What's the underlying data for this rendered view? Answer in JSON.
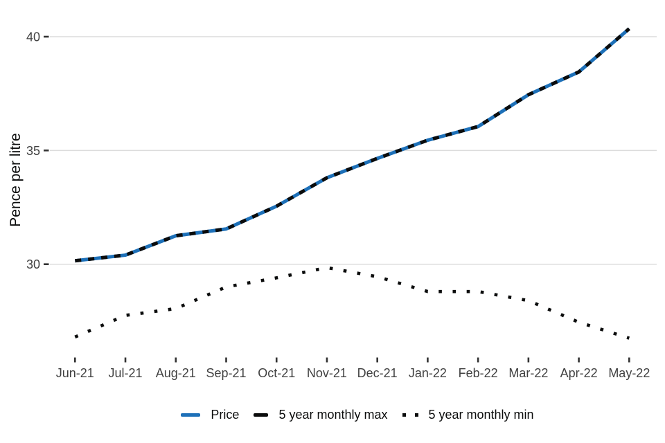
{
  "chart_data": {
    "type": "line",
    "title": "",
    "xlabel": "",
    "ylabel": "Pence per litre",
    "categories": [
      "Jun-21",
      "Jul-21",
      "Aug-21",
      "Sep-21",
      "Oct-21",
      "Nov-21",
      "Dec-21",
      "Jan-22",
      "Feb-22",
      "Mar-22",
      "Apr-22",
      "May-22"
    ],
    "yticks": [
      30,
      35,
      40
    ],
    "ylim": [
      25.9,
      41.2
    ],
    "grid": "horizontal-only",
    "legend_position": "bottom-center",
    "series": [
      {
        "name": "Price",
        "style": "solid",
        "color": "#1d70b8",
        "values": [
          30.15,
          30.4,
          31.25,
          31.55,
          32.55,
          33.8,
          34.65,
          35.45,
          36.05,
          37.45,
          38.45,
          40.35
        ]
      },
      {
        "name": "5 year monthly max",
        "style": "dashed",
        "color": "#0b0c0c",
        "values": [
          30.15,
          30.4,
          31.25,
          31.55,
          32.55,
          33.8,
          34.65,
          35.45,
          36.05,
          37.45,
          38.45,
          40.35
        ]
      },
      {
        "name": "5 year monthly min",
        "style": "dotted",
        "color": "#0b0c0c",
        "values": [
          26.8,
          27.75,
          28.05,
          29.0,
          29.4,
          29.85,
          29.45,
          28.8,
          28.8,
          28.4,
          27.45,
          26.75
        ]
      }
    ],
    "notes": "Price and 5 year monthly max series overlap exactly (blue line with black dashes on top)"
  },
  "colors": {
    "accent_blue": "#1d70b8",
    "series_black": "#0b0c0c",
    "grid_line": "#dcdcdc",
    "tick_mark": "#333333",
    "tick_label": "#404040"
  }
}
